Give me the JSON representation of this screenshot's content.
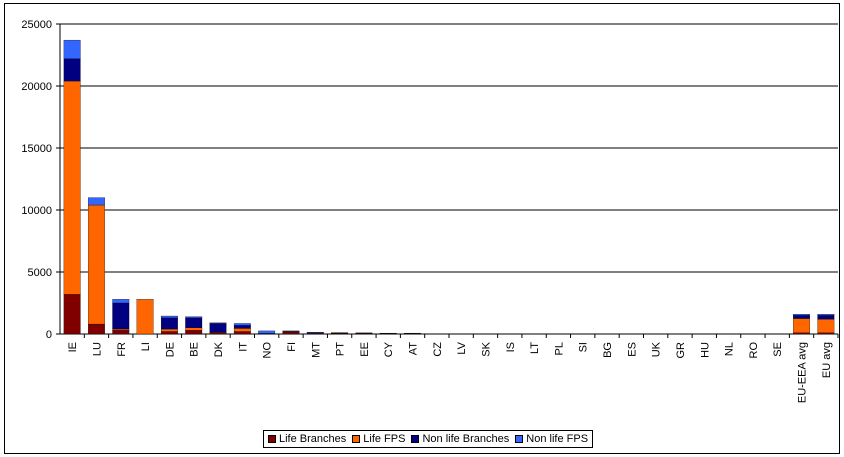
{
  "chart_data": {
    "type": "bar",
    "stacked": true,
    "title": "",
    "xlabel": "",
    "ylabel": "",
    "ylim": [
      0,
      25000
    ],
    "yticks": [
      0,
      5000,
      10000,
      15000,
      20000,
      25000
    ],
    "grid": true,
    "legend_position": "bottom",
    "categories": [
      "IE",
      "LU",
      "FR",
      "LI",
      "DE",
      "BE",
      "DK",
      "IT",
      "NO",
      "FI",
      "MT",
      "PT",
      "EE",
      "CY",
      "AT",
      "CZ",
      "LV",
      "SK",
      "IS",
      "LT",
      "PL",
      "SI",
      "BG",
      "ES",
      "UK",
      "GR",
      "HU",
      "NL",
      "RO",
      "SE",
      "EU-EEA avg",
      "EU avg"
    ],
    "series": [
      {
        "name": "Life Branches",
        "color": "#800000",
        "values": [
          3200,
          800,
          300,
          0,
          200,
          300,
          100,
          200,
          0,
          150,
          50,
          50,
          50,
          30,
          30,
          0,
          0,
          0,
          0,
          0,
          0,
          0,
          0,
          0,
          0,
          0,
          0,
          0,
          0,
          0,
          100,
          100
        ]
      },
      {
        "name": "Life FPS",
        "color": "#FF6600",
        "values": [
          17200,
          9600,
          100,
          2800,
          200,
          200,
          50,
          250,
          0,
          50,
          0,
          20,
          10,
          10,
          10,
          0,
          0,
          0,
          0,
          0,
          0,
          0,
          0,
          0,
          0,
          0,
          0,
          0,
          0,
          0,
          1150,
          1100
        ]
      },
      {
        "name": "Non life Branches",
        "color": "#000080",
        "values": [
          1800,
          0,
          2100,
          0,
          900,
          800,
          700,
          250,
          50,
          50,
          50,
          20,
          20,
          20,
          20,
          0,
          0,
          0,
          0,
          0,
          0,
          0,
          0,
          0,
          0,
          0,
          0,
          0,
          0,
          0,
          250,
          300
        ]
      },
      {
        "name": "Non life FPS",
        "color": "#3366FF",
        "values": [
          1500,
          600,
          300,
          0,
          150,
          100,
          50,
          150,
          200,
          0,
          50,
          10,
          10,
          10,
          10,
          0,
          0,
          0,
          0,
          0,
          0,
          0,
          0,
          0,
          0,
          0,
          0,
          0,
          0,
          0,
          100,
          100
        ]
      }
    ]
  }
}
